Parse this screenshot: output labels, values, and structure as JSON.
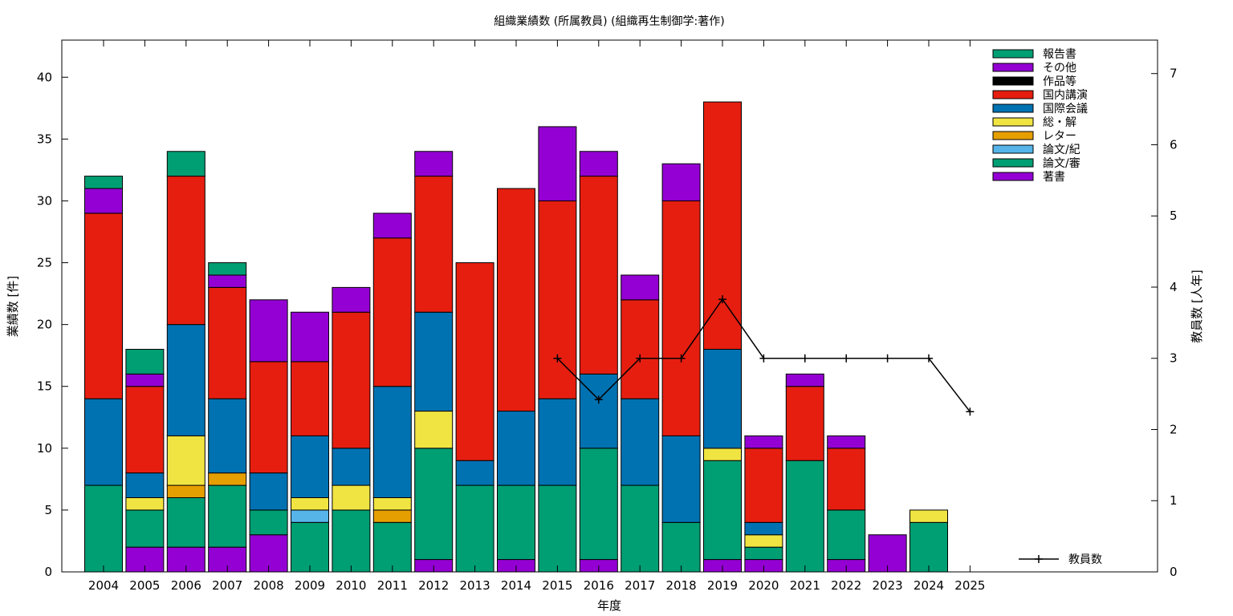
{
  "chart_data": {
    "type": "bar",
    "stacked": true,
    "title": "組織業績数 (所属教員) (組織再生制御学:著作)",
    "xlabel": "年度",
    "ylabel": "業績数 [件]",
    "y2label": "教員数 [人年]",
    "ylim": [
      0,
      43
    ],
    "y2lim": [
      0,
      7.47
    ],
    "yticks": [
      0,
      5,
      10,
      15,
      20,
      25,
      30,
      35,
      40
    ],
    "y2ticks": [
      0,
      1,
      2,
      3,
      4,
      5,
      6,
      7
    ],
    "grid": false,
    "legend_position": "top-right",
    "categories": [
      "2004",
      "2005",
      "2006",
      "2007",
      "2008",
      "2009",
      "2010",
      "2011",
      "2012",
      "2013",
      "2014",
      "2015",
      "2016",
      "2017",
      "2018",
      "2019",
      "2020",
      "2021",
      "2022",
      "2023",
      "2024",
      "2025"
    ],
    "series": [
      {
        "name": "著書",
        "color": "#9400d3",
        "values": [
          0,
          2,
          2,
          2,
          3,
          0,
          0,
          0,
          1,
          0,
          1,
          0,
          1,
          0,
          0,
          1,
          1,
          0,
          1,
          3,
          0,
          0
        ]
      },
      {
        "name": "論文/審",
        "color": "#009e73",
        "values": [
          7,
          3,
          4,
          5,
          2,
          4,
          5,
          4,
          9,
          7,
          6,
          7,
          9,
          7,
          4,
          8,
          1,
          9,
          4,
          0,
          4,
          0
        ]
      },
      {
        "name": "論文/紀",
        "color": "#56b4e9",
        "values": [
          0,
          0,
          0,
          0,
          0,
          1,
          0,
          0,
          0,
          0,
          0,
          0,
          0,
          0,
          0,
          0,
          0,
          0,
          0,
          0,
          0,
          0
        ]
      },
      {
        "name": "レター",
        "color": "#e69f00",
        "values": [
          0,
          0,
          1,
          1,
          0,
          0,
          0,
          1,
          0,
          0,
          0,
          0,
          0,
          0,
          0,
          0,
          0,
          0,
          0,
          0,
          0,
          0
        ]
      },
      {
        "name": "総・解",
        "color": "#f0e442",
        "values": [
          0,
          1,
          4,
          0,
          0,
          1,
          2,
          1,
          3,
          0,
          0,
          0,
          0,
          0,
          0,
          1,
          1,
          0,
          0,
          0,
          1,
          0
        ]
      },
      {
        "name": "国際会議",
        "color": "#0072b2",
        "values": [
          7,
          2,
          9,
          6,
          3,
          5,
          3,
          9,
          8,
          2,
          6,
          7,
          6,
          7,
          7,
          8,
          1,
          0,
          0,
          0,
          0,
          0
        ]
      },
      {
        "name": "国内講演",
        "color": "#e51e10",
        "values": [
          15,
          7,
          12,
          9,
          9,
          6,
          11,
          12,
          11,
          16,
          18,
          16,
          16,
          8,
          19,
          20,
          6,
          6,
          5,
          0,
          0,
          0
        ]
      },
      {
        "name": "作品等",
        "color": "#000000",
        "values": [
          0,
          0,
          0,
          0,
          0,
          0,
          0,
          0,
          0,
          0,
          0,
          0,
          0,
          0,
          0,
          0,
          0,
          0,
          0,
          0,
          0,
          0
        ]
      },
      {
        "name": "その他",
        "color": "#9400d3",
        "values": [
          2,
          1,
          0,
          1,
          5,
          4,
          2,
          2,
          2,
          0,
          0,
          6,
          2,
          2,
          3,
          0,
          1,
          1,
          1,
          0,
          0,
          0
        ]
      },
      {
        "name": "報告書",
        "color": "#009e73",
        "values": [
          1,
          2,
          2,
          1,
          0,
          0,
          0,
          0,
          0,
          0,
          0,
          0,
          0,
          0,
          0,
          0,
          0,
          0,
          0,
          0,
          0,
          0
        ]
      }
    ],
    "line_series": {
      "name": "教員数",
      "color": "#000000",
      "axis": "y2",
      "x": [
        "2015",
        "2016",
        "2017",
        "2018",
        "2019",
        "2020",
        "2021",
        "2022",
        "2023",
        "2024",
        "2025"
      ],
      "values": [
        3.0,
        2.42,
        3.0,
        3.0,
        3.83,
        3.0,
        3.0,
        3.0,
        3.0,
        3.0,
        2.25
      ]
    }
  }
}
